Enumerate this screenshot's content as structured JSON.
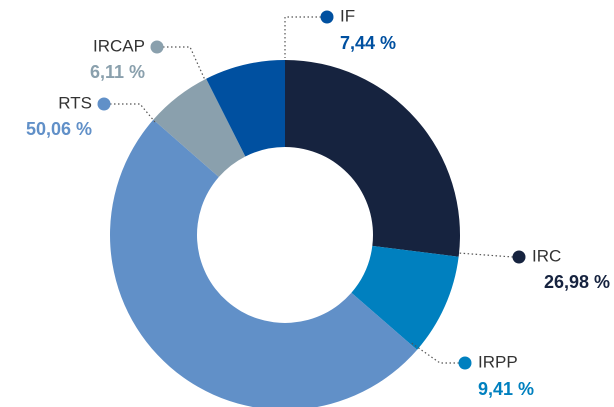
{
  "chart_data": {
    "type": "donut",
    "categories": [
      "IRC",
      "IRPP",
      "RTS",
      "IRCAP",
      "IF"
    ],
    "values": [
      26.98,
      9.41,
      50.06,
      6.11,
      7.44
    ],
    "value_labels": [
      "26,98 %",
      "9,41 %",
      "50,06 %",
      "6,11 %",
      "7,44 %"
    ],
    "colors": [
      "#16233f",
      "#0080bf",
      "#6190c8",
      "#8aa0ad",
      "#0050a0"
    ]
  }
}
